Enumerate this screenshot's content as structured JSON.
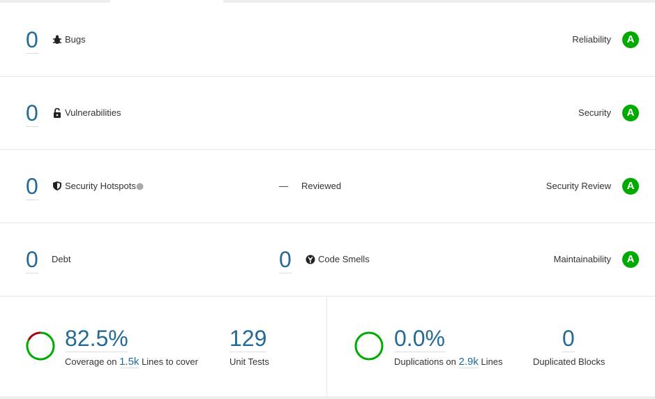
{
  "rows": [
    {
      "count": "0",
      "label": "Bugs",
      "rating_label": "Reliability",
      "rating": "A"
    },
    {
      "count": "0",
      "label": "Vulnerabilities",
      "rating_label": "Security",
      "rating": "A"
    },
    {
      "count": "0",
      "label": "Security Hotspots",
      "reviewed": "—",
      "reviewed_label": "Reviewed",
      "rating_label": "Security Review",
      "rating": "A"
    },
    {
      "count": "0",
      "label": "Debt",
      "smells_count": "0",
      "smells_label": "Code Smells",
      "rating_label": "Maintainability",
      "rating": "A"
    }
  ],
  "coverage": {
    "value": 82.5,
    "label": "82.5%",
    "prefix": "Coverage on",
    "lines": "1.5k",
    "suffix": "Lines to cover",
    "tests": "129",
    "tests_label": "Unit Tests"
  },
  "duplications": {
    "value": 0.0,
    "label": "0.0%",
    "prefix": "Duplications on",
    "lines": "2.9k",
    "suffix": "Lines",
    "blocks": "0",
    "blocks_label": "Duplicated Blocks"
  }
}
